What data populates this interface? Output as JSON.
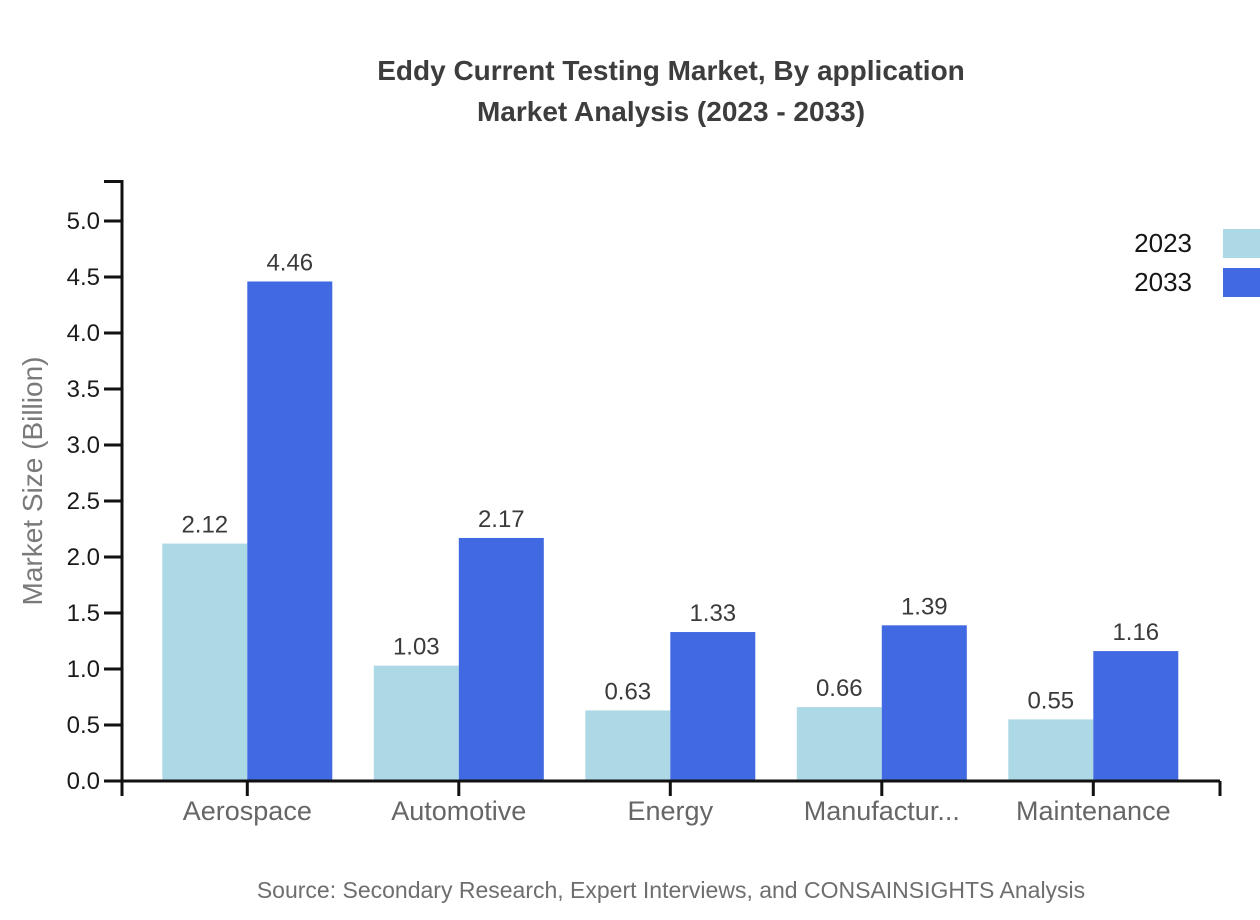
{
  "title": {
    "line1": "Eddy Current Testing Market, By application",
    "line2": "Market Analysis (2023 - 2033)"
  },
  "y_axis": {
    "label": "Market Size (Billion)"
  },
  "legend": {
    "items": [
      {
        "label": "2023",
        "color": "#ADD8E6"
      },
      {
        "label": "2033",
        "color": "#4169E1"
      }
    ]
  },
  "source": "Source: Secondary Research, Expert Interviews, and CONSAINSIGHTS Analysis",
  "colors": {
    "axis": "#111111",
    "tick_label": "#1a1a1a",
    "value_label": "#3a3a3a",
    "category_label": "#666666"
  },
  "chart_data": {
    "type": "bar",
    "title": "Eddy Current Testing Market, By application — Market Analysis (2023 - 2033)",
    "categories": [
      "Aerospace",
      "Automotive",
      "Energy",
      "Manufactur...",
      "Maintenance"
    ],
    "series": [
      {
        "name": "2023",
        "color": "#ADD8E6",
        "values": [
          2.12,
          1.03,
          0.63,
          0.66,
          0.55
        ]
      },
      {
        "name": "2033",
        "color": "#4169E1",
        "values": [
          4.46,
          2.17,
          1.33,
          1.39,
          1.16
        ]
      }
    ],
    "xlabel": "",
    "ylabel": "Market Size (Billion)",
    "ylim": [
      0,
      5.0
    ],
    "yticks": [
      0,
      0.5,
      1.0,
      1.5,
      2.0,
      2.5,
      3.0,
      3.5,
      4.0,
      4.5,
      5.0
    ],
    "grid": false,
    "legend_position": "top-right",
    "value_labels": true
  }
}
